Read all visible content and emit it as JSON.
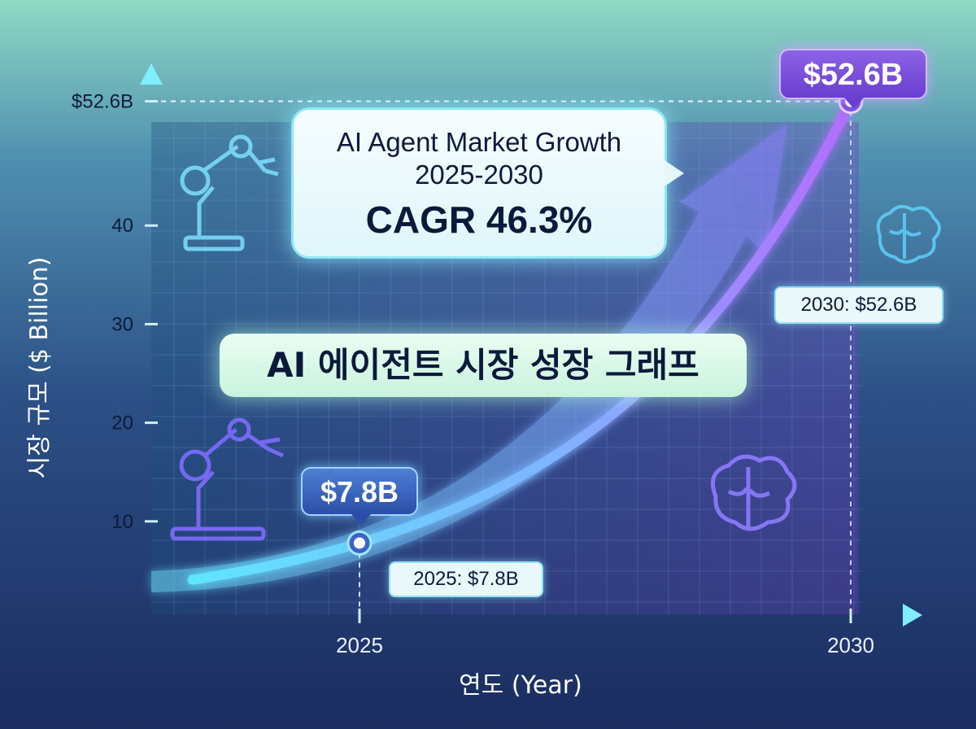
{
  "chart_data": {
    "type": "line",
    "title": "AI Agent Market Growth",
    "subtitle": "2025-2030",
    "highlight": "CAGR 46.3%",
    "korean_title": "AI 에이전트 시장 성장 그래프",
    "xlabel": "연도 (Year)",
    "ylabel": "시장 규모 ($ Billion)",
    "x_ticks": [
      "2025",
      "2030"
    ],
    "y_ticks": [
      "10",
      "20",
      "30",
      "40",
      "$52.6B"
    ],
    "y_tick_values": [
      10,
      20,
      30,
      40,
      52.6
    ],
    "x": [
      2025,
      2030
    ],
    "values": [
      7.8,
      52.6
    ],
    "series": [
      {
        "values": [
          7.8,
          52.6
        ]
      }
    ],
    "start_label": "$7.8B",
    "end_label": "$52.6B",
    "start_callout": "2025: $7.8B",
    "end_callout": "2030: $52.6B",
    "xlim": [
      2025,
      2030
    ],
    "ylim": [
      0,
      52.6
    ],
    "grid": true,
    "colors": {
      "start_line": "#5fe6ff",
      "end_line": "#b46cff",
      "start_marker": "#3b63c8",
      "end_marker": "#7a4ee0",
      "text_dark": "#0b1a3a"
    }
  }
}
